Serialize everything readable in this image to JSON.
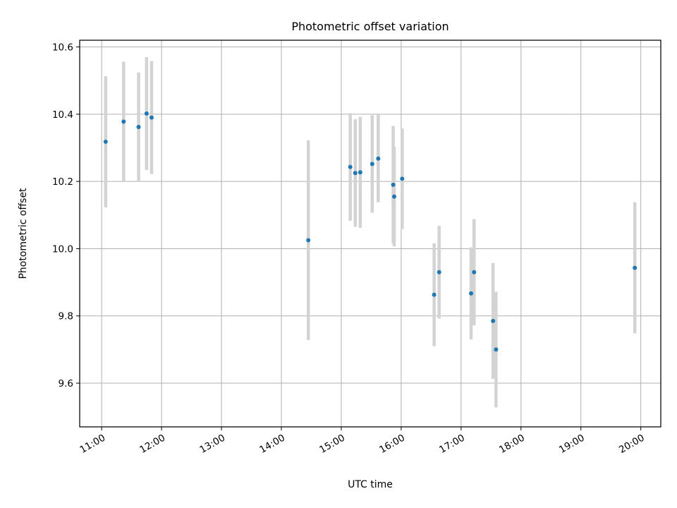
{
  "chart_data": {
    "type": "scatter",
    "title": "Photometric offset variation",
    "xlabel": "UTC time",
    "ylabel": "Photometric offset",
    "xlim": [
      "10:38",
      "20:20"
    ],
    "ylim": [
      9.47,
      10.62
    ],
    "grid": true,
    "x_ticks": [
      "11:00",
      "12:00",
      "13:00",
      "14:00",
      "15:00",
      "16:00",
      "17:00",
      "18:00",
      "19:00",
      "20:00"
    ],
    "y_ticks": [
      "9.6",
      "9.8",
      "10.0",
      "10.2",
      "10.4",
      "10.6"
    ],
    "y_tick_values": [
      9.6,
      9.8,
      10.0,
      10.2,
      10.4,
      10.6
    ],
    "marker_color": "#1f77b4",
    "errorbar_color": "#d3d3d3",
    "points": [
      {
        "x": "11:04",
        "y": 10.318,
        "err": 0.195
      },
      {
        "x": "11:22",
        "y": 10.378,
        "err": 0.178
      },
      {
        "x": "11:37",
        "y": 10.362,
        "err": 0.162
      },
      {
        "x": "11:45",
        "y": 10.402,
        "err": 0.168
      },
      {
        "x": "11:50",
        "y": 10.39,
        "err": 0.168
      },
      {
        "x": "14:27",
        "y": 10.025,
        "err": 0.297
      },
      {
        "x": "15:09",
        "y": 10.243,
        "err": 0.16
      },
      {
        "x": "15:14",
        "y": 10.225,
        "err": 0.16
      },
      {
        "x": "15:19",
        "y": 10.227,
        "err": 0.165
      },
      {
        "x": "15:31",
        "y": 10.252,
        "err": 0.145
      },
      {
        "x": "15:37",
        "y": 10.268,
        "err": 0.13
      },
      {
        "x": "15:52",
        "y": 10.19,
        "err": 0.175
      },
      {
        "x": "15:53",
        "y": 10.155,
        "err": 0.148
      },
      {
        "x": "16:01",
        "y": 10.208,
        "err": 0.15
      },
      {
        "x": "16:33",
        "y": 9.863,
        "err": 0.153
      },
      {
        "x": "16:38",
        "y": 9.93,
        "err": 0.138
      },
      {
        "x": "17:10",
        "y": 9.867,
        "err": 0.137
      },
      {
        "x": "17:13",
        "y": 9.93,
        "err": 0.158
      },
      {
        "x": "17:32",
        "y": 9.785,
        "err": 0.172
      },
      {
        "x": "17:35",
        "y": 9.7,
        "err": 0.172
      },
      {
        "x": "19:54",
        "y": 9.943,
        "err": 0.195
      }
    ]
  }
}
